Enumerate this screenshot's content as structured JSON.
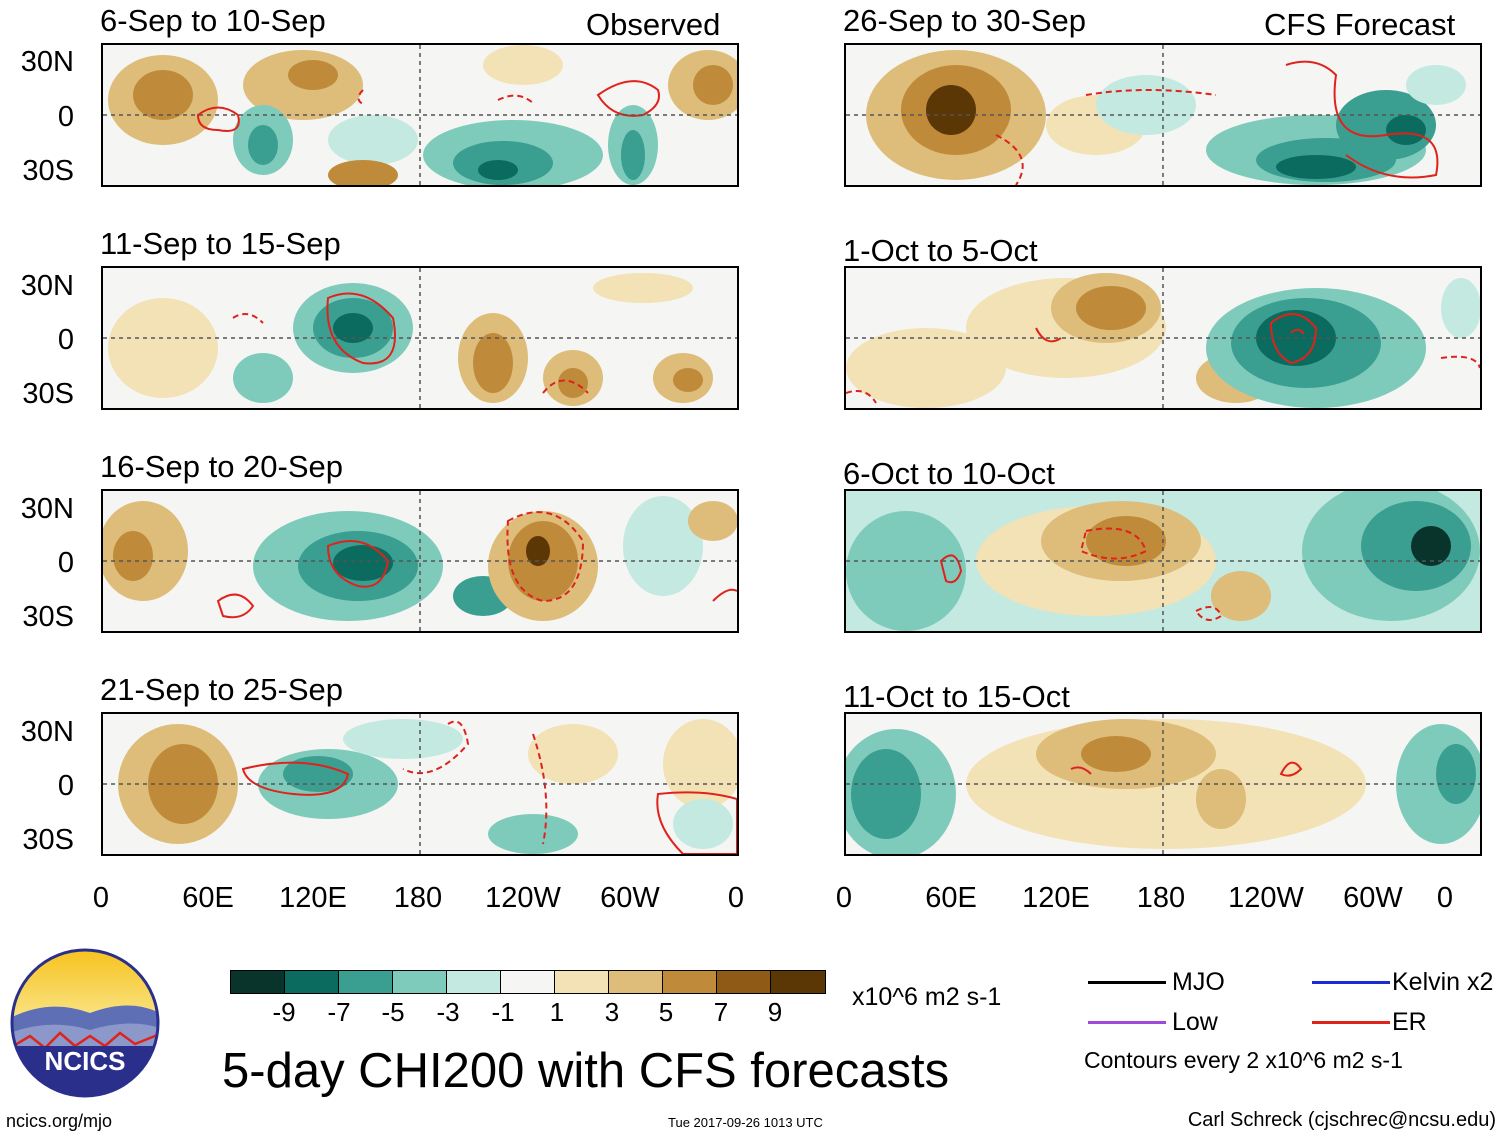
{
  "headers": {
    "observed": "Observed",
    "forecast": "CFS Forecast"
  },
  "panels": {
    "left": [
      {
        "title": "6-Sep to 10-Sep"
      },
      {
        "title": "11-Sep to 15-Sep"
      },
      {
        "title": "16-Sep to 20-Sep"
      },
      {
        "title": "21-Sep to 25-Sep"
      }
    ],
    "right": [
      {
        "title": "26-Sep to 30-Sep"
      },
      {
        "title": "1-Oct to 5-Oct"
      },
      {
        "title": "6-Oct to 10-Oct"
      },
      {
        "title": "11-Oct to 15-Oct"
      }
    ]
  },
  "axes": {
    "lat_labels": [
      "30N",
      "0",
      "30S"
    ],
    "lon_labels": [
      "0",
      "60E",
      "120E",
      "180",
      "120W",
      "60W",
      "0"
    ]
  },
  "colorbar": {
    "colors": [
      "#08342c",
      "#0a6b5e",
      "#3a9e90",
      "#7ecbbc",
      "#c4e9e0",
      "#f5f5f3",
      "#f2e2b6",
      "#ddbd79",
      "#bf8b3a",
      "#8e5a16",
      "#5c3706"
    ],
    "ticks": [
      "-9",
      "-7",
      "-5",
      "-3",
      "-1",
      "1",
      "3",
      "5",
      "7",
      "9"
    ],
    "units": "x10^6 m2 s-1"
  },
  "title": "5-day CHI200 with CFS forecasts",
  "legend": {
    "mjo": {
      "label": "MJO",
      "color": "#000000"
    },
    "kelvin": {
      "label": "Kelvin x2",
      "color": "#1a2bd6"
    },
    "low": {
      "label": "Low",
      "color": "#a04bd8"
    },
    "er": {
      "label": "ER",
      "color": "#e0221c"
    },
    "note": "Contours every 2 x10^6 m2 s-1"
  },
  "logo": {
    "text": "NCICS"
  },
  "footer": {
    "left": "ncics.org/mjo",
    "timestamp": "Tue 2017-09-26 1013 UTC",
    "credit": "Carl Schreck (cjschrec@ncsu.edu)"
  }
}
